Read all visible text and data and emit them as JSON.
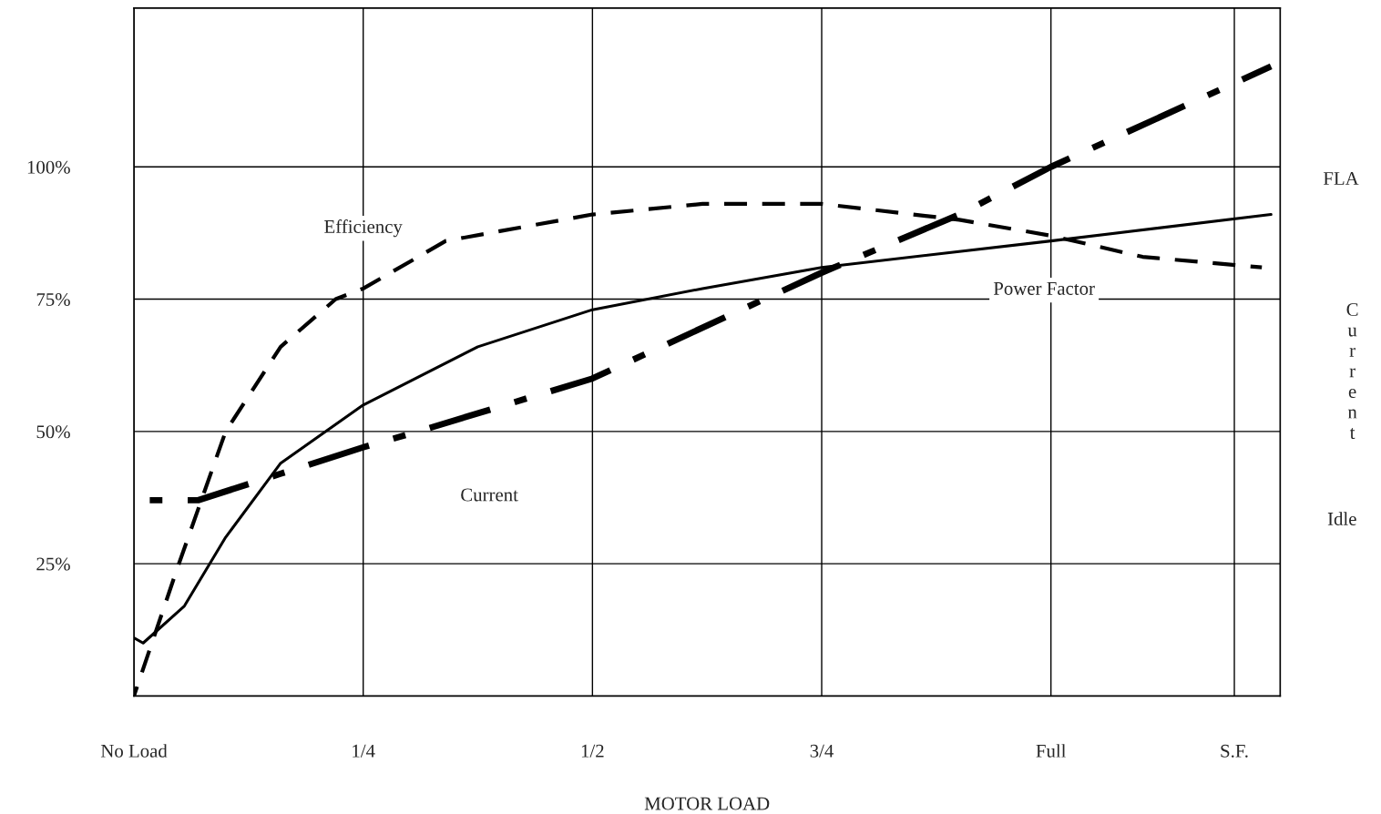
{
  "chart_data": {
    "type": "line",
    "xlabel": "MOTOR LOAD",
    "xlim": [
      0,
      1.25
    ],
    "ylim": [
      0,
      130
    ],
    "xticks": [
      {
        "value": 0,
        "label": "No Load"
      },
      {
        "value": 0.25,
        "label": "1/4"
      },
      {
        "value": 0.5,
        "label": "1/2"
      },
      {
        "value": 0.75,
        "label": "3/4"
      },
      {
        "value": 1,
        "label": "Full"
      },
      {
        "value": 1.2,
        "label": "S.F."
      }
    ],
    "yticks": [
      {
        "value": 25,
        "label": "25%"
      },
      {
        "value": 50,
        "label": "50%"
      },
      {
        "value": 75,
        "label": "75%"
      },
      {
        "value": 100,
        "label": "100%"
      }
    ],
    "grid": true,
    "legend": false,
    "series": [
      {
        "color": "#000000",
        "line_style": "dashed",
        "x": [
          0,
          0.047,
          0.1,
          0.16,
          0.22,
          0.25,
          0.34,
          0.5,
          0.62,
          0.75,
          0.9,
          1.0,
          1.1,
          1.23
        ],
        "values": [
          0,
          24,
          50,
          66,
          75,
          77,
          86,
          91,
          93,
          93,
          90,
          87,
          83,
          81
        ]
      },
      {
        "color": "#000000",
        "line_style": "solid",
        "x": [
          0,
          0.01,
          0.055,
          0.1,
          0.16,
          0.25,
          0.375,
          0.5,
          0.62,
          0.75,
          1.0,
          1.24
        ],
        "values": [
          11,
          10,
          17,
          30,
          44,
          55,
          66,
          73,
          77,
          81,
          86,
          91
        ]
      },
      {
        "color": "#000000",
        "line_style": "dashdot",
        "x": [
          0,
          0.07,
          0.16,
          0.25,
          0.31,
          0.5,
          0.75,
          0.9,
          1.0,
          1.24
        ],
        "values": [
          37,
          37,
          42,
          47,
          50,
          60,
          80,
          91,
          100,
          119
        ]
      }
    ],
    "annotations": [
      "Efficiency",
      "Power Factor",
      "Current",
      "FLA",
      "Current",
      "Idle"
    ]
  }
}
